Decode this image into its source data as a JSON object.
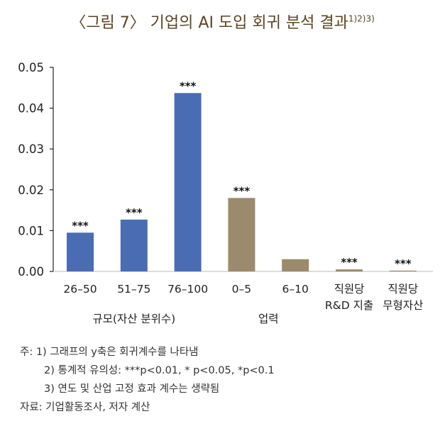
{
  "title": {
    "main": "〈그림 7〉 기업의 AI 도입 회귀 분석 결과",
    "sup": "1)2)3)"
  },
  "chart_data": {
    "type": "bar",
    "categories": [
      "26–50",
      "51–75",
      "76–100",
      "0–5",
      "6–10",
      "직원당\nR&D 지출",
      "직원당\n무형자산"
    ],
    "values": [
      0.0095,
      0.0127,
      0.0437,
      0.018,
      0.003,
      0.0005,
      0.0002
    ],
    "significance": [
      "***",
      "***",
      "***",
      "***",
      "",
      "***",
      "***"
    ],
    "bar_colors": [
      "#4a6cb3",
      "#4a6cb3",
      "#4a6cb3",
      "#9b8a6c",
      "#9b8a6c",
      "#9b8a6c",
      "#9b8a6c"
    ],
    "groups": [
      {
        "label": "규모(자산 분위수)",
        "from": 0,
        "to": 2
      },
      {
        "label": "업력",
        "from": 3,
        "to": 4
      }
    ],
    "yticks": [
      "0.00",
      "0.01",
      "0.02",
      "0.03",
      "0.04",
      "0.05"
    ],
    "ylim": [
      0,
      0.05
    ],
    "grid": false
  },
  "notes": [
    "주: 1) 그래프의 y축은 회귀계수를 나타냄",
    "2) 통계적 유의성: ***p<0.01, * p<0.05, *p<0.1",
    "3) 연도 및 산업 고정 효과 계수는 생략됨",
    "자료: 기업활동조사, 저자 계산"
  ]
}
